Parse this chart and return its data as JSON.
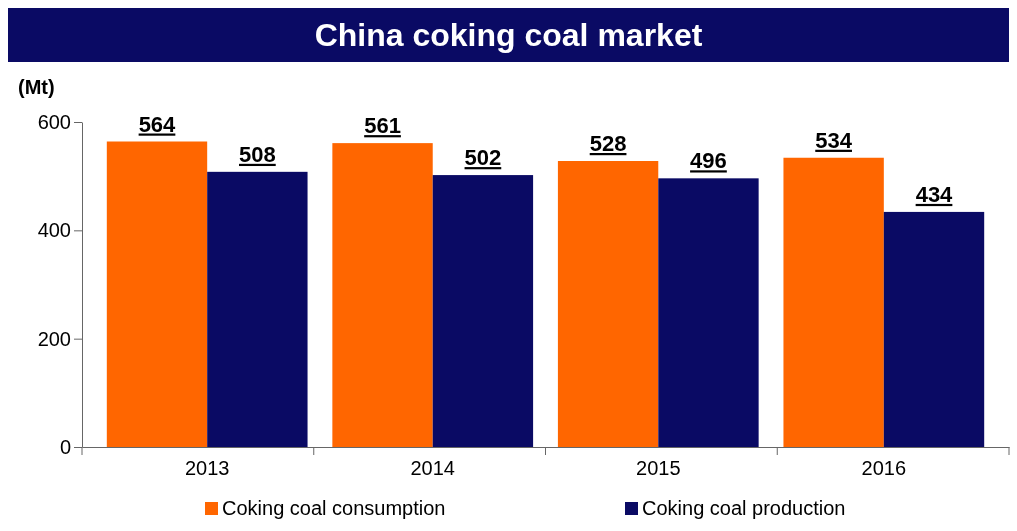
{
  "chart_data": {
    "type": "bar",
    "title": "China coking coal market",
    "ylabel": "(Mt)",
    "categories": [
      "2013",
      "2014",
      "2015",
      "2016"
    ],
    "series": [
      {
        "name": "Coking coal consumption",
        "color": "#ff6600",
        "values": [
          564,
          561,
          528,
          534
        ]
      },
      {
        "name": "Coking coal production",
        "color": "#0a0a64",
        "values": [
          508,
          502,
          496,
          434
        ]
      }
    ],
    "ylim": [
      0,
      600
    ],
    "yticks": [
      0,
      200,
      400,
      600
    ],
    "grid": false,
    "legend": "bottom",
    "data_labels": true
  }
}
